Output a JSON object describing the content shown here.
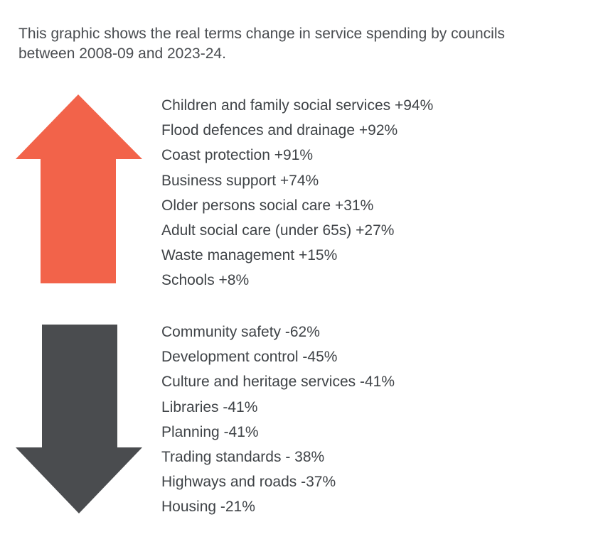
{
  "intro": {
    "line1": "This graphic shows the real terms change in service spending by councils",
    "line2": "between 2008-09 and 2023-24."
  },
  "colors": {
    "increase_arrow": "#f2634a",
    "decrease_arrow": "#4a4c4f",
    "text": "#3f4347"
  },
  "icons": {
    "increase": "arrow-up-icon",
    "decrease": "arrow-down-icon"
  },
  "increases": [
    {
      "label": "Children and family social services +94%"
    },
    {
      "label": "Flood defences and drainage +92%"
    },
    {
      "label": "Coast protection +91%"
    },
    {
      "label": "Business support +74%"
    },
    {
      "label": "Older persons social care +31%"
    },
    {
      "label": "Adult social care (under 65s) +27%"
    },
    {
      "label": "Waste management +15%"
    },
    {
      "label": "Schools +8%"
    }
  ],
  "decreases": [
    {
      "label": "Community safety -62%"
    },
    {
      "label": "Development control -45%"
    },
    {
      "label": "Culture and heritage services -41%"
    },
    {
      "label": "Libraries -41%"
    },
    {
      "label": "Planning -41%"
    },
    {
      "label": "Trading standards - 38%"
    },
    {
      "label": "Highways and roads -37%"
    },
    {
      "label": "Housing -21%"
    }
  ]
}
